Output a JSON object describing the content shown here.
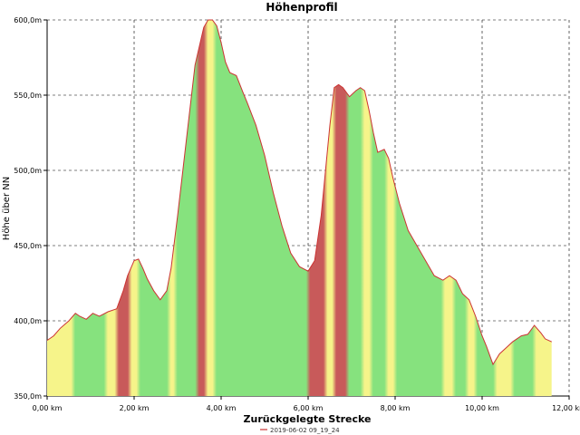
{
  "chart_data": {
    "type": "area",
    "title": "Höhenprofil",
    "xlabel": "Zurückgelegte Strecke",
    "ylabel": "Höhe über NN",
    "xlim": [
      0,
      12
    ],
    "ylim": [
      350,
      600
    ],
    "grid": true,
    "legend_position": "bottom-center",
    "x_ticks": [
      {
        "value": 0,
        "label": "0,00 km"
      },
      {
        "value": 2,
        "label": "2,00 km"
      },
      {
        "value": 4,
        "label": "4,00 km"
      },
      {
        "value": 6,
        "label": "6,00 km"
      },
      {
        "value": 8,
        "label": "8,00 km"
      },
      {
        "value": 10,
        "label": "10,00 km"
      },
      {
        "value": 12,
        "label": "12,00 km"
      }
    ],
    "y_ticks": [
      {
        "value": 350,
        "label": "350,0m"
      },
      {
        "value": 400,
        "label": "400,0m"
      },
      {
        "value": 450,
        "label": "450,0m"
      },
      {
        "value": 500,
        "label": "500,0m"
      },
      {
        "value": 550,
        "label": "550,0m"
      },
      {
        "value": 600,
        "label": "600,0m"
      }
    ],
    "series": [
      {
        "name": "2019-06-02 09_19_24",
        "color": "#cc3333",
        "x": [
          0.0,
          0.15,
          0.3,
          0.5,
          0.65,
          0.75,
          0.9,
          1.05,
          1.2,
          1.4,
          1.6,
          1.75,
          1.85,
          2.0,
          2.1,
          2.2,
          2.3,
          2.45,
          2.6,
          2.75,
          2.85,
          3.0,
          3.2,
          3.4,
          3.6,
          3.7,
          3.8,
          3.9,
          4.0,
          4.1,
          4.2,
          4.35,
          4.5,
          4.6,
          4.8,
          5.0,
          5.2,
          5.4,
          5.6,
          5.8,
          6.0,
          6.15,
          6.3,
          6.5,
          6.6,
          6.7,
          6.8,
          6.95,
          7.1,
          7.2,
          7.3,
          7.4,
          7.5,
          7.6,
          7.75,
          7.85,
          7.95,
          8.1,
          8.3,
          8.5,
          8.7,
          8.9,
          9.1,
          9.25,
          9.4,
          9.55,
          9.7,
          9.85,
          10.0,
          10.1,
          10.25,
          10.4,
          10.55,
          10.7,
          10.9,
          11.05,
          11.2,
          11.35,
          11.45,
          11.6
        ],
        "values": [
          387,
          390,
          395,
          400,
          405,
          403,
          401,
          405,
          403,
          406,
          408,
          420,
          430,
          440,
          441,
          435,
          428,
          420,
          414,
          420,
          435,
          470,
          520,
          570,
          595,
          600,
          600,
          596,
          585,
          572,
          565,
          563,
          552,
          545,
          530,
          510,
          485,
          463,
          445,
          436,
          433,
          440,
          470,
          530,
          555,
          557,
          555,
          549,
          553,
          555,
          553,
          540,
          525,
          512,
          514,
          508,
          495,
          478,
          460,
          450,
          440,
          430,
          427,
          430,
          427,
          418,
          414,
          403,
          390,
          383,
          371,
          378,
          382,
          386,
          390,
          391,
          397,
          392,
          388,
          386
        ]
      }
    ],
    "gradient_bands": [
      {
        "from": 0.0,
        "to": 0.6,
        "color": "#f6f48a"
      },
      {
        "from": 0.6,
        "to": 1.35,
        "color": "#86e27e"
      },
      {
        "from": 1.35,
        "to": 1.6,
        "color": "#f6f48a"
      },
      {
        "from": 1.6,
        "to": 1.9,
        "color": "#c85a5a"
      },
      {
        "from": 1.9,
        "to": 2.1,
        "color": "#f6f48a"
      },
      {
        "from": 2.1,
        "to": 2.8,
        "color": "#86e27e"
      },
      {
        "from": 2.8,
        "to": 2.95,
        "color": "#f6f48a"
      },
      {
        "from": 2.95,
        "to": 3.45,
        "color": "#86e27e"
      },
      {
        "from": 3.45,
        "to": 3.65,
        "color": "#c85a5a"
      },
      {
        "from": 3.65,
        "to": 3.85,
        "color": "#f6f48a"
      },
      {
        "from": 3.85,
        "to": 6.0,
        "color": "#86e27e"
      },
      {
        "from": 6.0,
        "to": 6.4,
        "color": "#c85a5a"
      },
      {
        "from": 6.4,
        "to": 6.6,
        "color": "#f6f48a"
      },
      {
        "from": 6.6,
        "to": 6.9,
        "color": "#c85a5a"
      },
      {
        "from": 6.9,
        "to": 7.25,
        "color": "#86e27e"
      },
      {
        "from": 7.25,
        "to": 7.45,
        "color": "#f6f48a"
      },
      {
        "from": 7.45,
        "to": 7.8,
        "color": "#86e27e"
      },
      {
        "from": 7.8,
        "to": 8.0,
        "color": "#f6f48a"
      },
      {
        "from": 8.0,
        "to": 9.1,
        "color": "#86e27e"
      },
      {
        "from": 9.1,
        "to": 9.35,
        "color": "#f6f48a"
      },
      {
        "from": 9.35,
        "to": 9.65,
        "color": "#86e27e"
      },
      {
        "from": 9.65,
        "to": 9.85,
        "color": "#f6f48a"
      },
      {
        "from": 9.85,
        "to": 10.3,
        "color": "#86e27e"
      },
      {
        "from": 10.3,
        "to": 10.7,
        "color": "#f6f48a"
      },
      {
        "from": 10.7,
        "to": 11.2,
        "color": "#86e27e"
      },
      {
        "from": 11.2,
        "to": 11.6,
        "color": "#f6f48a"
      }
    ]
  }
}
